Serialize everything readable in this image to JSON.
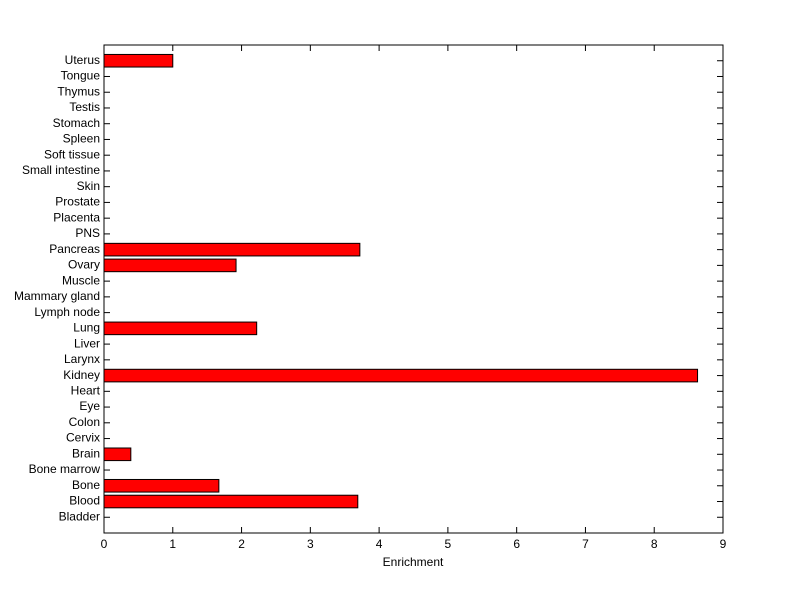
{
  "chart_data": {
    "type": "barh",
    "x_label": "Enrichment",
    "categories": [
      "Bladder",
      "Blood",
      "Bone",
      "Bone marrow",
      "Brain",
      "Cervix",
      "Colon",
      "Eye",
      "Heart",
      "Kidney",
      "Larynx",
      "Liver",
      "Lung",
      "Lymph node",
      "Mammary gland",
      "Muscle",
      "Ovary",
      "Pancreas",
      "PNS",
      "Placenta",
      "Prostate",
      "Skin",
      "Small intestine",
      "Soft tissue",
      "Spleen",
      "Stomach",
      "Testis",
      "Thymus",
      "Tongue",
      "Uterus"
    ],
    "values": [
      0,
      3.69,
      1.67,
      0,
      0.39,
      0,
      0,
      0,
      0,
      8.63,
      0,
      0,
      2.22,
      0,
      0,
      0,
      1.92,
      3.72,
      0,
      0,
      0,
      0,
      0,
      0,
      0,
      0,
      0,
      0,
      0,
      1.0
    ],
    "color": "#ff0000",
    "xlim": [
      0,
      9
    ],
    "xticks": [
      0,
      1,
      2,
      3,
      4,
      5,
      6,
      7,
      8,
      9
    ]
  }
}
